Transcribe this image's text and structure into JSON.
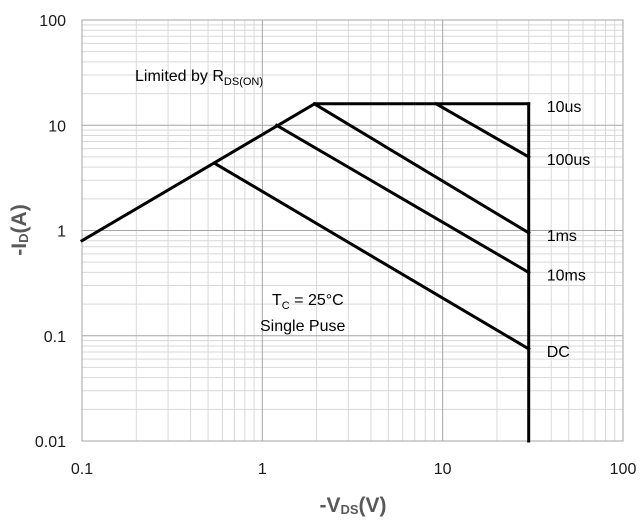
{
  "chart_data": {
    "type": "line",
    "x_scale": "log",
    "y_scale": "log",
    "xlim": [
      0.1,
      100
    ],
    "ylim": [
      0.01,
      100
    ],
    "grid": true,
    "x_ticks": [
      "0.1",
      "1",
      "10",
      "100"
    ],
    "y_ticks": [
      "0.01",
      "0.1",
      "1",
      "10",
      "100"
    ],
    "xlabel": {
      "prefix": "-V",
      "sub": "DS",
      "suffix": "(V)"
    },
    "ylabel": {
      "prefix": "-I",
      "sub": "D",
      "suffix": "(A)"
    },
    "annotations": {
      "limited": {
        "text": "Limited by R",
        "sub": "DS(ON)"
      },
      "tc": {
        "text": "T",
        "sub": "C",
        "rest": " = 25°C"
      },
      "pulse": "Single Puse"
    },
    "series": [
      {
        "name": "10us",
        "points": [
          [
            1.95,
            16
          ],
          [
            30,
            16
          ]
        ]
      },
      {
        "name": "100us",
        "points": [
          [
            9.2,
            16
          ],
          [
            30,
            5
          ]
        ]
      },
      {
        "name": "1ms",
        "points": [
          [
            2.0,
            15.5
          ],
          [
            30,
            0.95
          ]
        ]
      },
      {
        "name": "10ms",
        "points": [
          [
            1.2,
            10
          ],
          [
            30,
            0.4
          ]
        ]
      },
      {
        "name": "DC",
        "points": [
          [
            0.55,
            4.3
          ],
          [
            30,
            0.075
          ]
        ]
      },
      {
        "name": "",
        "points": [
          [
            0.1,
            0.8
          ],
          [
            1.95,
            16
          ]
        ]
      },
      {
        "name": "",
        "points": [
          [
            30,
            16
          ],
          [
            30,
            0.01
          ]
        ]
      }
    ],
    "line_color": "#000000",
    "grid_major_color": "#a6a6a6",
    "grid_minor_color": "#d9d9d9"
  }
}
